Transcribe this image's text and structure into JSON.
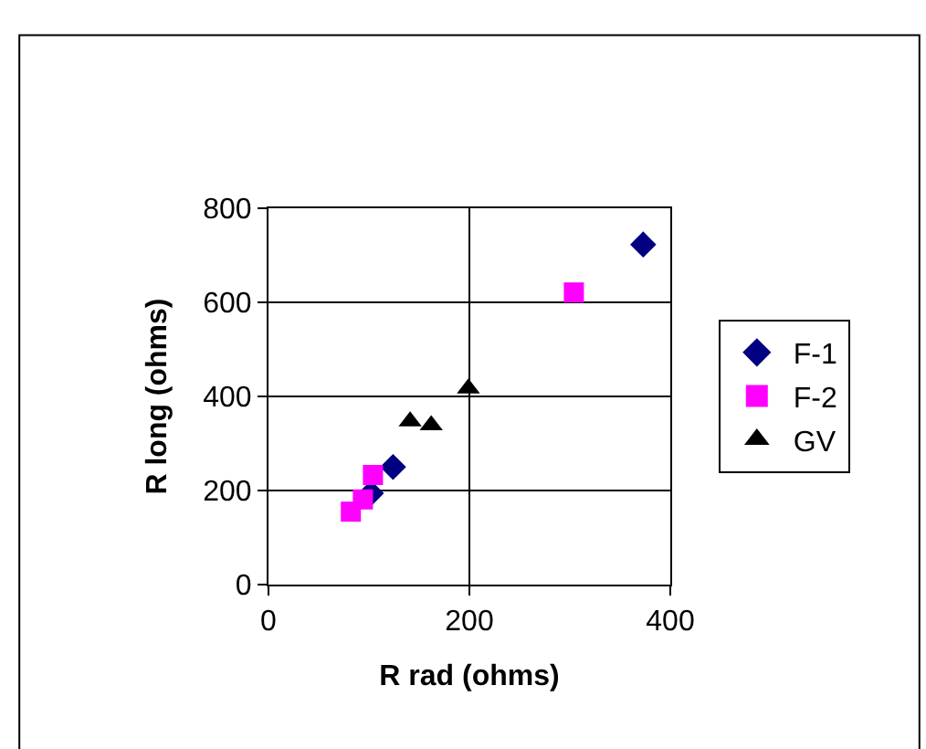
{
  "chart_data": {
    "type": "scatter",
    "xlabel": "R rad (ohms)",
    "ylabel": "R long (ohms)",
    "xlim": [
      0,
      400
    ],
    "xticks": [
      0,
      200,
      400
    ],
    "ylim": [
      0,
      800
    ],
    "yticks": [
      0,
      200,
      400,
      600,
      800
    ],
    "grid": true,
    "legend": "right",
    "series": [
      {
        "name": "F-1",
        "color": "#000080",
        "marker": "diamond",
        "x": [
          373,
          124,
          102
        ],
        "values": [
          723,
          250,
          194
        ]
      },
      {
        "name": "F-2",
        "color": "#ff00ff",
        "marker": "square",
        "x": [
          304,
          104,
          94,
          82
        ],
        "values": [
          621,
          233,
          181,
          155
        ]
      },
      {
        "name": "GV",
        "color": "#000000",
        "marker": "triangle",
        "x": [
          199,
          141,
          162
        ],
        "values": [
          417,
          347,
          339
        ]
      }
    ]
  }
}
